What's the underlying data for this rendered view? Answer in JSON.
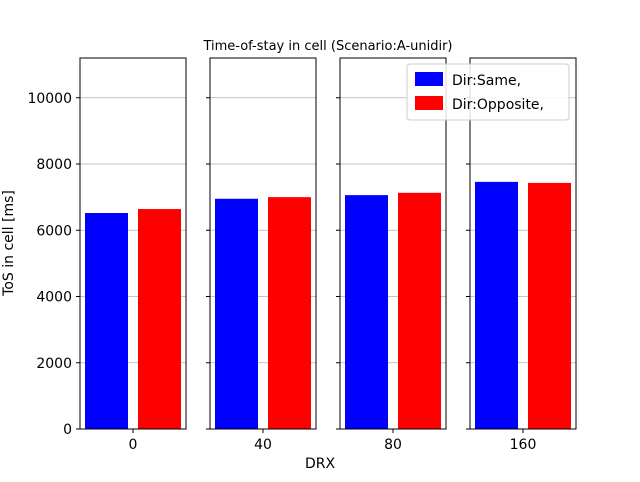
{
  "chart_data": {
    "type": "bar",
    "title": "Time-of-stay in cell (Scenario:A-unidir)",
    "xlabel": "DRX",
    "ylabel": "ToS in cell [ms]",
    "categories": [
      "0",
      "40",
      "80",
      "160"
    ],
    "series": [
      {
        "name": "Dir:Same,",
        "color": "#0000ff",
        "values": [
          6520,
          6950,
          7060,
          7460
        ]
      },
      {
        "name": "Dir:Opposite,",
        "color": "#ff0000",
        "values": [
          6640,
          7000,
          7130,
          7430
        ]
      }
    ],
    "ylim": [
      0,
      11200
    ],
    "yticks": [
      0,
      2000,
      4000,
      6000,
      8000,
      10000
    ],
    "grid": "horizontal",
    "legend_position": "top-right"
  }
}
